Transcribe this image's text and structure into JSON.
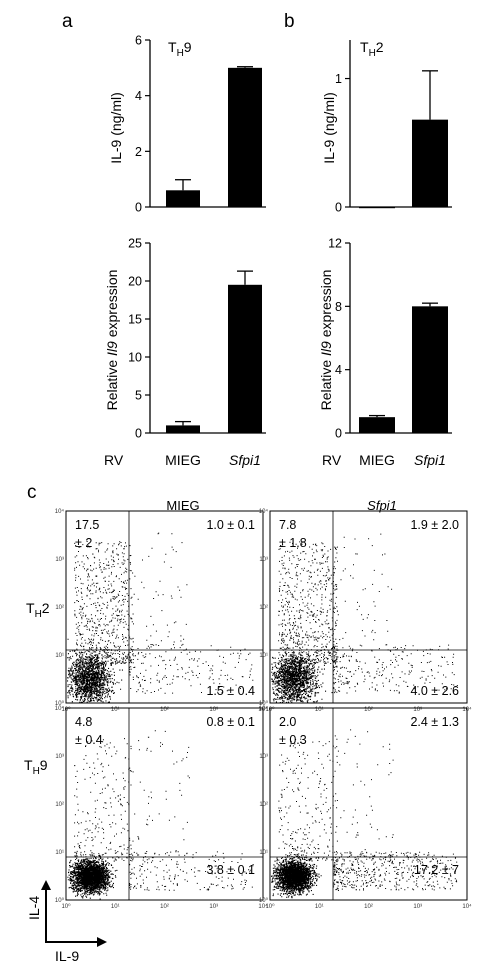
{
  "panels": {
    "a_label": "a",
    "b_label": "b",
    "c_label": "c"
  },
  "row_axis": {
    "top_ylabel": "IL-9 (ng/ml)",
    "bottom_ylabel_pre": "Relative ",
    "bottom_ylabel_gene": "Il9",
    "bottom_ylabel_post": " expression",
    "rv": "RV",
    "cat1": "MIEG",
    "cat2": "Sfpi1"
  },
  "conditions": {
    "th9": {
      "main": "T",
      "sub": "H",
      "tail": "9"
    },
    "th2": {
      "main": "T",
      "sub": "H",
      "tail": "2"
    }
  },
  "chart_data": [
    {
      "id": "a-top",
      "type": "bar",
      "condition": "TH9",
      "categories": [
        "MIEG",
        "Sfpi1"
      ],
      "values": [
        0.6,
        5.0
      ],
      "errors": [
        0.38,
        0.04
      ],
      "ylabel": "IL-9 (ng/ml)",
      "ylim": [
        0,
        6
      ],
      "yticks": [
        0,
        2,
        4,
        6
      ]
    },
    {
      "id": "a-bottom",
      "type": "bar",
      "categories": [
        "MIEG",
        "Sfpi1"
      ],
      "values": [
        1.0,
        19.5
      ],
      "errors": [
        0.5,
        1.8
      ],
      "ylabel": "Relative Il9 expression",
      "ylim": [
        0,
        25
      ],
      "yticks": [
        0,
        5,
        10,
        15,
        20,
        25
      ]
    },
    {
      "id": "b-top",
      "type": "bar",
      "condition": "TH2",
      "categories": [
        "MIEG",
        "Sfpi1"
      ],
      "values": [
        0.0,
        0.68
      ],
      "errors": [
        0.0,
        0.38
      ],
      "ylabel": "IL-9 (ng/ml)",
      "ylim": [
        0,
        1.3
      ],
      "yticks": [
        0,
        1
      ]
    },
    {
      "id": "b-bottom",
      "type": "bar",
      "categories": [
        "MIEG",
        "Sfpi1"
      ],
      "values": [
        1.0,
        8.0
      ],
      "errors": [
        0.1,
        0.2
      ],
      "ylabel": "Relative Il9 expression",
      "ylim": [
        0,
        12
      ],
      "yticks": [
        0,
        4,
        8,
        12
      ]
    },
    {
      "id": "c-flow",
      "type": "scatter",
      "x_axis": "IL-9",
      "y_axis": "IL-4",
      "scale": "log",
      "decade_ticks": [
        "10⁰",
        "10¹",
        "10²",
        "10³",
        "10⁴"
      ],
      "columns": [
        "MIEG",
        "Sfpi1"
      ],
      "rows": [
        "TH2",
        "TH9"
      ],
      "plots": [
        {
          "column": "MIEG",
          "row": "TH2",
          "upper_left": [
            "17.5",
            "± 2"
          ],
          "upper_right": "1.0 ± 0.1",
          "lower_right": "1.5 ± 0.4"
        },
        {
          "column": "Sfpi1",
          "row": "TH2",
          "upper_left": [
            "7.8",
            "± 1.8"
          ],
          "upper_right": "1.9 ± 2.0",
          "lower_right": "4.0 ± 2.6"
        },
        {
          "column": "MIEG",
          "row": "TH9",
          "upper_left": [
            "4.8",
            "± 0.4"
          ],
          "upper_right": "0.8 ± 0.1",
          "lower_right": "3.8 ± 0.1"
        },
        {
          "column": "Sfpi1",
          "row": "TH9",
          "upper_left": [
            "2.0",
            "± 0.3"
          ],
          "upper_right": "2.4 ± 1.3",
          "lower_right": "17.2 ± 7"
        }
      ]
    }
  ],
  "colors": {
    "bar": "#000000",
    "axis": "#000000",
    "dot": "#000000"
  }
}
